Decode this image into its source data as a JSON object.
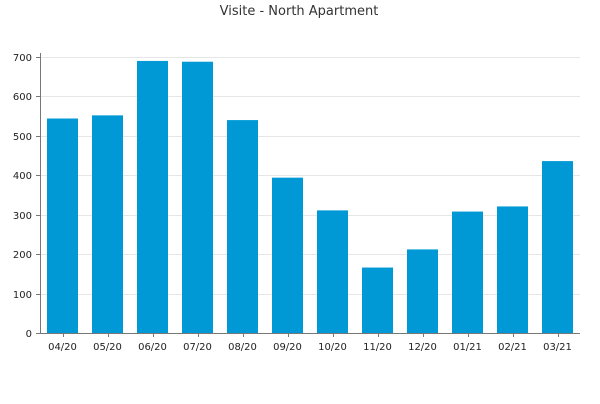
{
  "chart_data": {
    "type": "bar",
    "title": "Visite - North Apartment",
    "xlabel": "",
    "ylabel": "",
    "categories": [
      "04/20",
      "05/20",
      "06/20",
      "07/20",
      "08/20",
      "09/20",
      "10/20",
      "11/20",
      "12/20",
      "01/21",
      "02/21",
      "03/21"
    ],
    "values": [
      544,
      552,
      690,
      688,
      540,
      394,
      311,
      166,
      212,
      308,
      321,
      436
    ],
    "ylim": [
      0,
      700
    ],
    "yticks": [
      0,
      100,
      200,
      300,
      400,
      500,
      600,
      700
    ],
    "grid": true,
    "legend": "none",
    "bar_color": "#0099d6"
  }
}
